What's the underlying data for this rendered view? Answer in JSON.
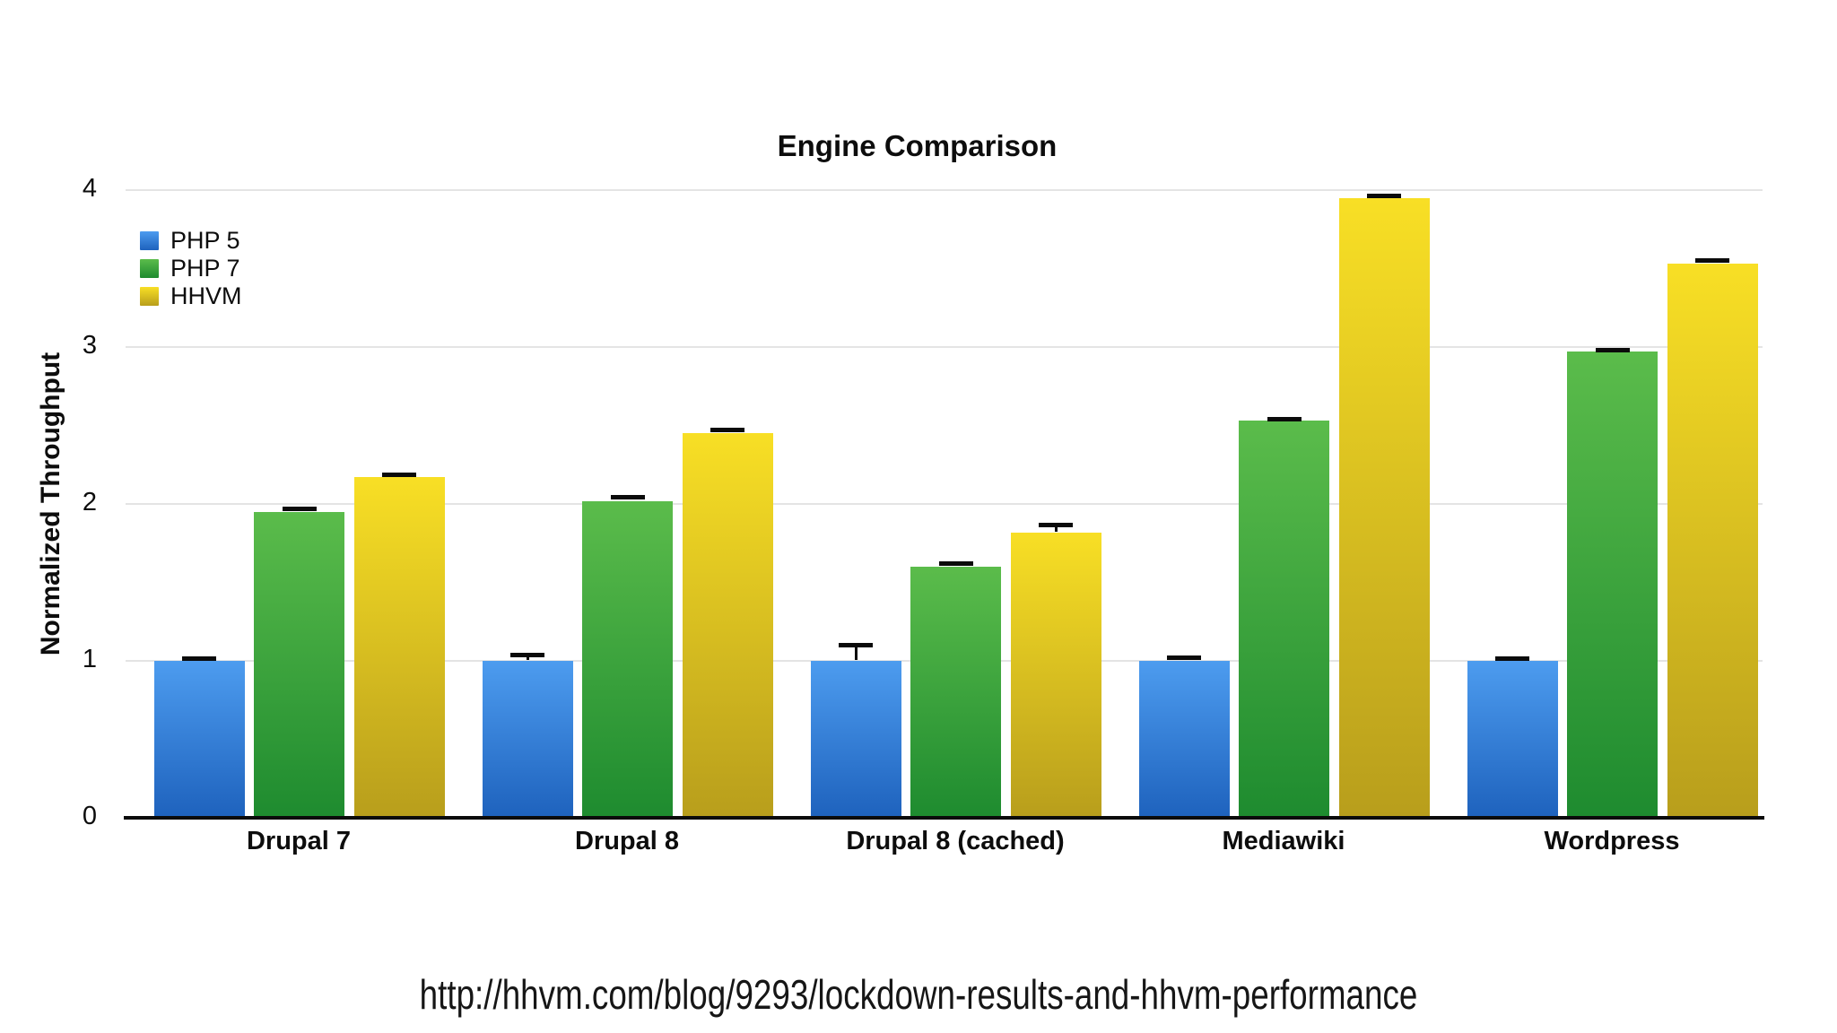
{
  "chart_data": {
    "type": "bar",
    "title": "Engine Comparison",
    "xlabel": "",
    "ylabel": "Normalized Throughput",
    "ylim": [
      0,
      4
    ],
    "yticks": [
      0,
      1,
      2,
      3,
      4
    ],
    "grid": true,
    "legend_position": "top-left",
    "categories": [
      "Drupal 7",
      "Drupal 8",
      "Drupal 8 (cached)",
      "Mediawiki",
      "Wordpress"
    ],
    "series": [
      {
        "name": "PHP 5",
        "color_top": "#4d9cef",
        "color_bottom": "#1e62bd",
        "values": [
          1.0,
          1.0,
          1.0,
          1.0,
          1.0
        ],
        "errors": [
          0.01,
          0.035,
          0.1,
          0.015,
          0.01
        ]
      },
      {
        "name": "PHP 7",
        "color_top": "#5bbc4b",
        "color_bottom": "#1e8b2f",
        "values": [
          1.95,
          2.02,
          1.6,
          2.53,
          2.97
        ],
        "errors": [
          0.015,
          0.02,
          0.02,
          0.01,
          0.01
        ]
      },
      {
        "name": "HHVM",
        "color_top": "#f8df25",
        "color_bottom": "#b89e1c",
        "values": [
          2.17,
          2.45,
          1.82,
          3.95,
          3.53
        ],
        "errors": [
          0.015,
          0.02,
          0.045,
          0.01,
          0.02
        ]
      }
    ]
  },
  "footer": {
    "url": "http://hhvm.com/blog/9293/lockdown-results-and-hhvm-performance"
  }
}
